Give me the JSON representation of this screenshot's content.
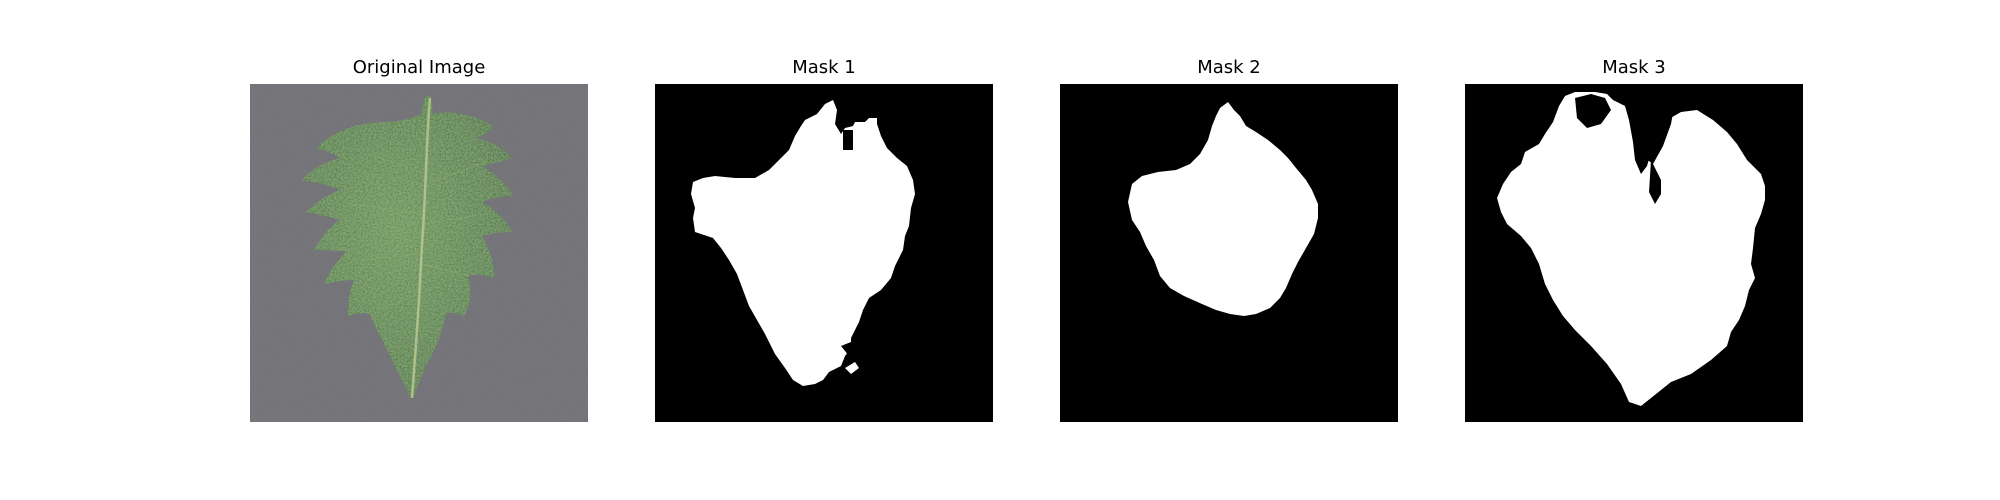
{
  "figure": {
    "panels": [
      {
        "title": "Original Image"
      },
      {
        "title": "Mask 1"
      },
      {
        "title": "Mask 2"
      },
      {
        "title": "Mask 3"
      }
    ]
  },
  "colors": {
    "background": "#ffffff",
    "mask_background": "#000000",
    "mask_foreground": "#ffffff",
    "leaf_green": "#4a7a3f",
    "leaf_light": "#6d9a58",
    "vein": "#a8b880",
    "gravel_dark": "#5b5b5f",
    "gravel_light": "#8d8d92"
  }
}
